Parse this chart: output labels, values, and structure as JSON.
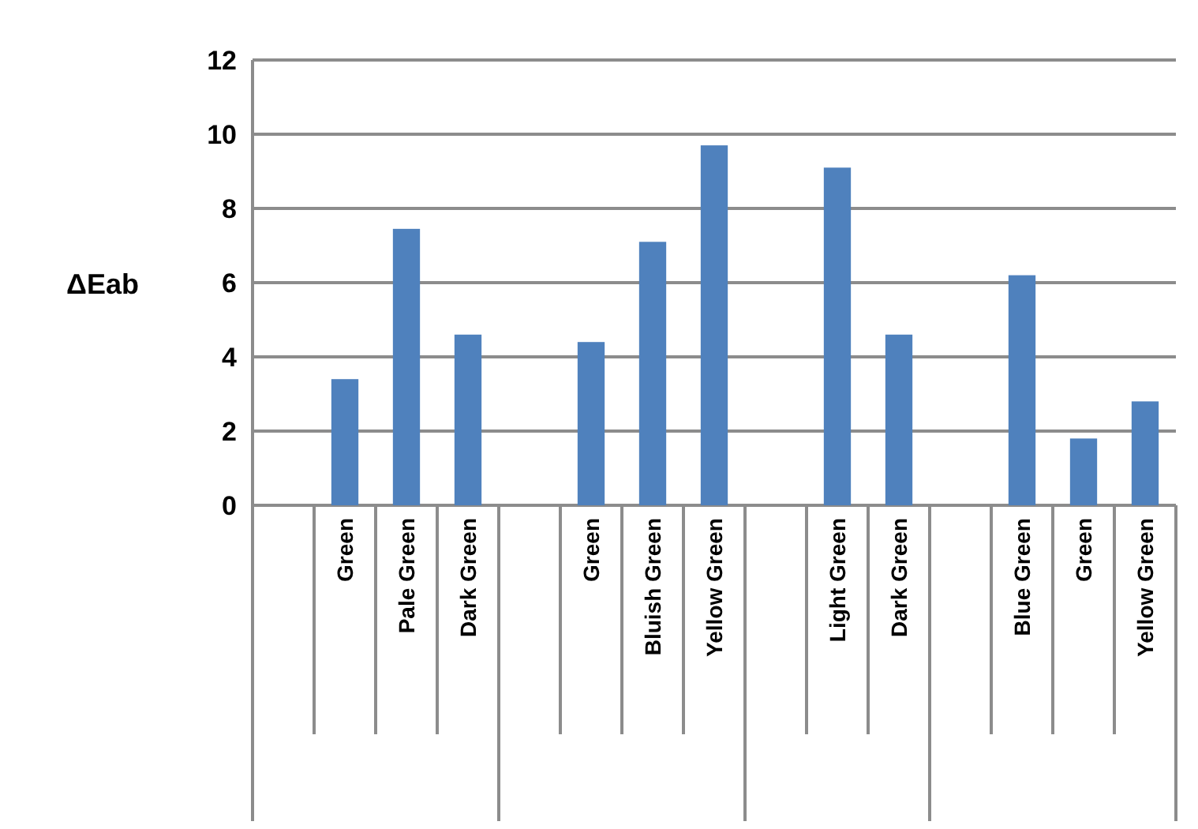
{
  "chart_data": {
    "type": "bar",
    "ylabel": "ΔEab",
    "categories": [
      null,
      "Green",
      "Pale Green",
      "Dark Green",
      null,
      "Green",
      "Bluish Green",
      "Yellow Green",
      null,
      "Light Green",
      "Dark Green",
      null,
      "Blue Green",
      "Green",
      "Yellow Green"
    ],
    "values": [
      null,
      3.4,
      7.45,
      4.6,
      null,
      4.4,
      7.1,
      9.7,
      null,
      9.1,
      4.6,
      null,
      6.2,
      1.8,
      2.8
    ],
    "color": "#4f81bd",
    "ylim": [
      0,
      12
    ],
    "yticks": [
      0,
      2,
      4,
      6,
      8,
      10,
      12
    ],
    "grid": "y"
  }
}
